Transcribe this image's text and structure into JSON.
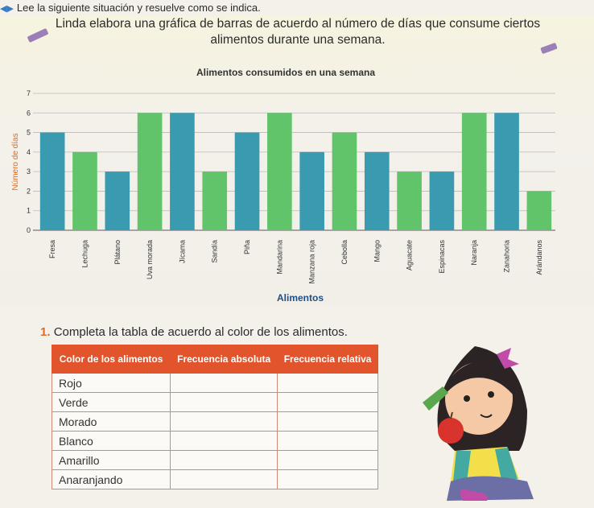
{
  "instruction": "Lee la siguiente situación y resuelve como se indica.",
  "intro": "Linda elabora una gráfica de barras de acuerdo al número de días que consume ciertos alimentos durante una semana.",
  "question": {
    "number": "1.",
    "text": "Completa la tabla de acuerdo al color de los alimentos."
  },
  "table": {
    "headers": [
      "Color de los alimentos",
      "Frecuencia absoluta",
      "Frecuencia relativa"
    ],
    "rows": [
      "Rojo",
      "Verde",
      "Morado",
      "Blanco",
      "Amarillo",
      "Anaranjando"
    ]
  },
  "colors": {
    "bar_green": "#62c46a",
    "bar_teal": "#3a9bb0",
    "table_header": "#e2542b",
    "accent_orange": "#e16a1f"
  },
  "chart_data": {
    "type": "bar",
    "title": "Alimentos consumidos en una semana",
    "xlabel": "Alimentos",
    "ylabel": "Número de días",
    "ylim": [
      0,
      7
    ],
    "yticks": [
      0,
      1,
      2,
      3,
      4,
      5,
      6,
      7
    ],
    "grid": true,
    "categories": [
      "Fresa",
      "Lechuga",
      "Plátano",
      "Uva morada",
      "Jícama",
      "Sandía",
      "Piña",
      "Mandarina",
      "Manzana roja",
      "Cebolla",
      "Mango",
      "Aguacate",
      "Espinacas",
      "Naranja",
      "Zanahoria",
      "Arándanos"
    ],
    "values": [
      5,
      4,
      3,
      6,
      6,
      3,
      5,
      6,
      4,
      5,
      4,
      3,
      3,
      6,
      6,
      2
    ],
    "bar_colors": [
      "bar_teal",
      "bar_green",
      "bar_teal",
      "bar_green",
      "bar_teal",
      "bar_green",
      "bar_teal",
      "bar_green",
      "bar_teal",
      "bar_green",
      "bar_teal",
      "bar_green",
      "bar_teal",
      "bar_green",
      "bar_teal",
      "bar_green"
    ]
  }
}
